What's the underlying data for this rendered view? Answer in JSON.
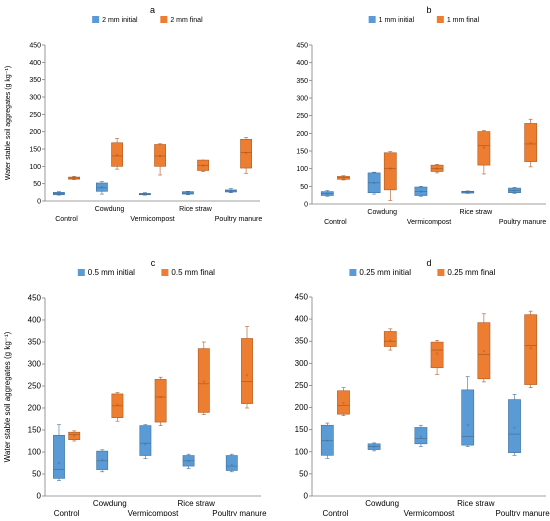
{
  "colors": {
    "initial": "#5B9BD5",
    "initial_edge": "#41719C",
    "final": "#ED7D31",
    "final_edge": "#AE5A21",
    "axis": "#808080",
    "text": "#000000"
  },
  "shared": {
    "ylabel": "Water stable soil aggregates (g kg⁻¹)"
  },
  "chart_data": [
    {
      "panel_label": "a",
      "type": "box",
      "categories": [
        "Control",
        "Cowdung",
        "Vermicompost",
        "Rice straw",
        "Poultry manure"
      ],
      "ylim": [
        0,
        450
      ],
      "yticks": [
        0,
        50,
        100,
        150,
        200,
        250,
        300,
        350,
        400,
        450
      ],
      "legend_position": "top",
      "series": [
        {
          "name": "2 mm initial",
          "boxes": [
            {
              "min": 17,
              "q1": 18,
              "median": 21,
              "q3": 25,
              "max": 27,
              "mean": 21
            },
            {
              "min": 20,
              "q1": 28,
              "median": 38,
              "q3": 52,
              "max": 56,
              "mean": 40
            },
            {
              "min": 17,
              "q1": 18,
              "median": 20,
              "q3": 22,
              "max": 24,
              "mean": 20
            },
            {
              "min": 18,
              "q1": 20,
              "median": 23,
              "q3": 27,
              "max": 28,
              "mean": 23
            },
            {
              "min": 24,
              "q1": 26,
              "median": 29,
              "q3": 32,
              "max": 36,
              "mean": 29
            }
          ]
        },
        {
          "name": "2 mm final",
          "boxes": [
            {
              "min": 62,
              "q1": 63,
              "median": 66,
              "q3": 69,
              "max": 71,
              "mean": 66
            },
            {
              "min": 92,
              "q1": 100,
              "median": 130,
              "q3": 168,
              "max": 180,
              "mean": 133
            },
            {
              "min": 75,
              "q1": 100,
              "median": 130,
              "q3": 163,
              "max": 165,
              "mean": 130
            },
            {
              "min": 85,
              "q1": 88,
              "median": 103,
              "q3": 118,
              "max": 118,
              "mean": 103
            },
            {
              "min": 80,
              "q1": 95,
              "median": 140,
              "q3": 178,
              "max": 183,
              "mean": 138
            }
          ]
        }
      ]
    },
    {
      "panel_label": "b",
      "type": "box",
      "categories": [
        "Control",
        "Cowdung",
        "Vermicompost",
        "Rice straw",
        "Poultry manure"
      ],
      "ylim": [
        0,
        450
      ],
      "yticks": [
        0,
        50,
        100,
        150,
        200,
        250,
        300,
        350,
        400,
        450
      ],
      "legend_position": "top",
      "series": [
        {
          "name": "1 mm initial",
          "boxes": [
            {
              "min": 22,
              "q1": 24,
              "median": 30,
              "q3": 35,
              "max": 38,
              "mean": 30
            },
            {
              "min": 28,
              "q1": 32,
              "median": 60,
              "q3": 88,
              "max": 90,
              "mean": 60
            },
            {
              "min": 22,
              "q1": 24,
              "median": 35,
              "q3": 48,
              "max": 50,
              "mean": 35
            },
            {
              "min": 30,
              "q1": 31,
              "median": 34,
              "q3": 36,
              "max": 37,
              "mean": 34
            },
            {
              "min": 30,
              "q1": 32,
              "median": 38,
              "q3": 45,
              "max": 47,
              "mean": 38
            }
          ]
        },
        {
          "name": "1 mm final",
          "boxes": [
            {
              "min": 68,
              "q1": 70,
              "median": 75,
              "q3": 78,
              "max": 80,
              "mean": 75
            },
            {
              "min": 10,
              "q1": 40,
              "median": 100,
              "q3": 145,
              "max": 148,
              "mean": 100
            },
            {
              "min": 88,
              "q1": 92,
              "median": 100,
              "q3": 110,
              "max": 112,
              "mean": 100
            },
            {
              "min": 85,
              "q1": 110,
              "median": 165,
              "q3": 205,
              "max": 208,
              "mean": 160
            },
            {
              "min": 105,
              "q1": 120,
              "median": 170,
              "q3": 228,
              "max": 240,
              "mean": 172
            }
          ]
        }
      ]
    },
    {
      "panel_label": "c",
      "type": "box",
      "categories": [
        "Control",
        "Cowdung",
        "Vermicompost",
        "Rice straw",
        "Poultry manure"
      ],
      "ylim": [
        0,
        450
      ],
      "yticks": [
        0,
        50,
        100,
        150,
        200,
        250,
        300,
        350,
        400,
        450
      ],
      "legend_position": "top",
      "series": [
        {
          "name": "0.5 mm initial",
          "boxes": [
            {
              "min": 35,
              "q1": 40,
              "median": 60,
              "q3": 138,
              "max": 162,
              "mean": 75
            },
            {
              "min": 55,
              "q1": 60,
              "median": 80,
              "q3": 102,
              "max": 105,
              "mean": 82
            },
            {
              "min": 85,
              "q1": 92,
              "median": 120,
              "q3": 160,
              "max": 162,
              "mean": 118
            },
            {
              "min": 62,
              "q1": 68,
              "median": 80,
              "q3": 92,
              "max": 95,
              "mean": 80
            },
            {
              "min": 55,
              "q1": 58,
              "median": 68,
              "q3": 92,
              "max": 95,
              "mean": 72
            }
          ]
        },
        {
          "name": "0.5 mm final",
          "boxes": [
            {
              "min": 125,
              "q1": 128,
              "median": 140,
              "q3": 145,
              "max": 148,
              "mean": 138
            },
            {
              "min": 170,
              "q1": 178,
              "median": 205,
              "q3": 232,
              "max": 235,
              "mean": 208
            },
            {
              "min": 160,
              "q1": 168,
              "median": 225,
              "q3": 265,
              "max": 270,
              "mean": 225
            },
            {
              "min": 185,
              "q1": 190,
              "median": 255,
              "q3": 335,
              "max": 350,
              "mean": 260
            },
            {
              "min": 200,
              "q1": 210,
              "median": 260,
              "q3": 358,
              "max": 385,
              "mean": 275
            }
          ]
        }
      ]
    },
    {
      "panel_label": "d",
      "type": "box",
      "categories": [
        "Control",
        "Cowdung",
        "Vermicompost",
        "Rice straw",
        "Poultry manure"
      ],
      "ylim": [
        0,
        450
      ],
      "yticks": [
        0,
        50,
        100,
        150,
        200,
        250,
        300,
        350,
        400,
        450
      ],
      "legend_position": "top",
      "series": [
        {
          "name": "0.25 mm initial",
          "boxes": [
            {
              "min": 85,
              "q1": 92,
              "median": 125,
              "q3": 160,
              "max": 165,
              "mean": 125
            },
            {
              "min": 102,
              "q1": 105,
              "median": 112,
              "q3": 118,
              "max": 120,
              "mean": 112
            },
            {
              "min": 112,
              "q1": 118,
              "median": 130,
              "q3": 155,
              "max": 160,
              "mean": 135
            },
            {
              "min": 112,
              "q1": 115,
              "median": 135,
              "q3": 240,
              "max": 270,
              "mean": 160
            },
            {
              "min": 92,
              "q1": 98,
              "median": 140,
              "q3": 218,
              "max": 230,
              "mean": 155
            }
          ]
        },
        {
          "name": "0.25 mm final",
          "boxes": [
            {
              "min": 182,
              "q1": 185,
              "median": 205,
              "q3": 238,
              "max": 245,
              "mean": 210
            },
            {
              "min": 330,
              "q1": 338,
              "median": 350,
              "q3": 372,
              "max": 378,
              "mean": 352
            },
            {
              "min": 275,
              "q1": 290,
              "median": 330,
              "q3": 348,
              "max": 352,
              "mean": 322
            },
            {
              "min": 258,
              "q1": 265,
              "median": 320,
              "q3": 392,
              "max": 412,
              "mean": 328
            },
            {
              "min": 245,
              "q1": 252,
              "median": 340,
              "q3": 410,
              "max": 418,
              "mean": 335
            }
          ]
        }
      ]
    }
  ]
}
